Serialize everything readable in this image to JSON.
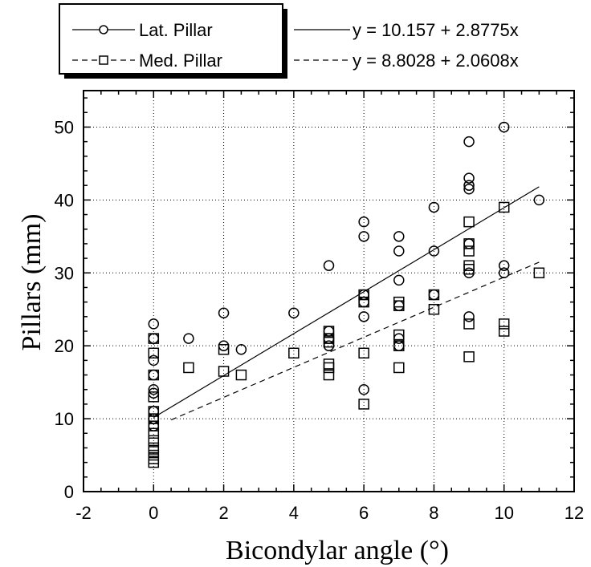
{
  "chart_data": {
    "type": "scatter",
    "xlabel": "Bicondylar angle (°)",
    "ylabel": "Pillars (mm)",
    "xlim": [
      -2,
      12
    ],
    "ylim": [
      0,
      55
    ],
    "x_ticks": [
      -2,
      0,
      2,
      4,
      6,
      8,
      10,
      12
    ],
    "y_ticks": [
      0,
      10,
      20,
      30,
      40,
      50
    ],
    "x_tick_labels": [
      "-2",
      "0",
      "2",
      "4",
      "6",
      "8",
      "10",
      "12"
    ],
    "y_tick_labels": [
      "0",
      "10",
      "20",
      "30",
      "40",
      "50"
    ],
    "grid": "dotted",
    "legend_placement": "top",
    "series": [
      {
        "name": "Lat. Pillar",
        "marker": "circle",
        "color": "#000000",
        "points": [
          [
            0,
            23
          ],
          [
            0,
            21
          ],
          [
            0,
            18
          ],
          [
            0,
            16
          ],
          [
            0,
            14
          ],
          [
            0,
            13.5
          ],
          [
            0,
            11
          ],
          [
            0,
            10
          ],
          [
            0,
            9
          ],
          [
            1,
            21
          ],
          [
            2,
            24.5
          ],
          [
            2,
            20
          ],
          [
            2.5,
            19.5
          ],
          [
            4,
            24.5
          ],
          [
            5,
            31
          ],
          [
            5,
            22
          ],
          [
            5,
            21
          ],
          [
            5,
            20
          ],
          [
            6,
            37
          ],
          [
            6,
            35
          ],
          [
            6,
            27
          ],
          [
            6,
            26
          ],
          [
            6,
            24
          ],
          [
            6,
            14
          ],
          [
            7,
            35
          ],
          [
            7,
            33
          ],
          [
            7,
            29
          ],
          [
            7,
            25.5
          ],
          [
            7,
            21
          ],
          [
            7,
            20
          ],
          [
            8,
            39
          ],
          [
            8,
            33
          ],
          [
            8,
            27
          ],
          [
            9,
            48
          ],
          [
            9,
            43
          ],
          [
            9,
            42
          ],
          [
            9,
            41.5
          ],
          [
            9,
            34
          ],
          [
            9,
            30
          ],
          [
            9,
            24
          ],
          [
            10,
            50
          ],
          [
            10,
            31
          ],
          [
            10,
            30
          ],
          [
            11,
            40
          ]
        ]
      },
      {
        "name": "Med. Pillar",
        "marker": "square",
        "color": "#000000",
        "points": [
          [
            0,
            21
          ],
          [
            0,
            19
          ],
          [
            0,
            16
          ],
          [
            0,
            13
          ],
          [
            0,
            11
          ],
          [
            0,
            10
          ],
          [
            0,
            9
          ],
          [
            0,
            8
          ],
          [
            0,
            7
          ],
          [
            0,
            6
          ],
          [
            0,
            5.5
          ],
          [
            0,
            5
          ],
          [
            0,
            4.5
          ],
          [
            0,
            4
          ],
          [
            1,
            17
          ],
          [
            2,
            19.5
          ],
          [
            2,
            16.5
          ],
          [
            2.5,
            16
          ],
          [
            4,
            19
          ],
          [
            5,
            22
          ],
          [
            5,
            21
          ],
          [
            5,
            20.5
          ],
          [
            5,
            17.5
          ],
          [
            5,
            17
          ],
          [
            5,
            16
          ],
          [
            6,
            27
          ],
          [
            6,
            26
          ],
          [
            6,
            19
          ],
          [
            6,
            12
          ],
          [
            7,
            26
          ],
          [
            7,
            25.5
          ],
          [
            7,
            21.5
          ],
          [
            7,
            20
          ],
          [
            7,
            17
          ],
          [
            8,
            27
          ],
          [
            8,
            25
          ],
          [
            9,
            37
          ],
          [
            9,
            34
          ],
          [
            9,
            33
          ],
          [
            9,
            31
          ],
          [
            9,
            30.5
          ],
          [
            9,
            23
          ],
          [
            9,
            18.5
          ],
          [
            10,
            39
          ],
          [
            10,
            23
          ],
          [
            10,
            22
          ],
          [
            11,
            30
          ]
        ]
      }
    ],
    "fits": [
      {
        "label": "y = 10.157 + 2.8775x",
        "intercept": 10.157,
        "slope": 2.8775,
        "x_range": [
          0,
          11
        ],
        "style": "solid"
      },
      {
        "label": "y = 8.8028 + 2.0608x",
        "intercept": 8.8028,
        "slope": 2.0608,
        "x_range": [
          0.5,
          11
        ],
        "style": "dashed"
      }
    ]
  }
}
